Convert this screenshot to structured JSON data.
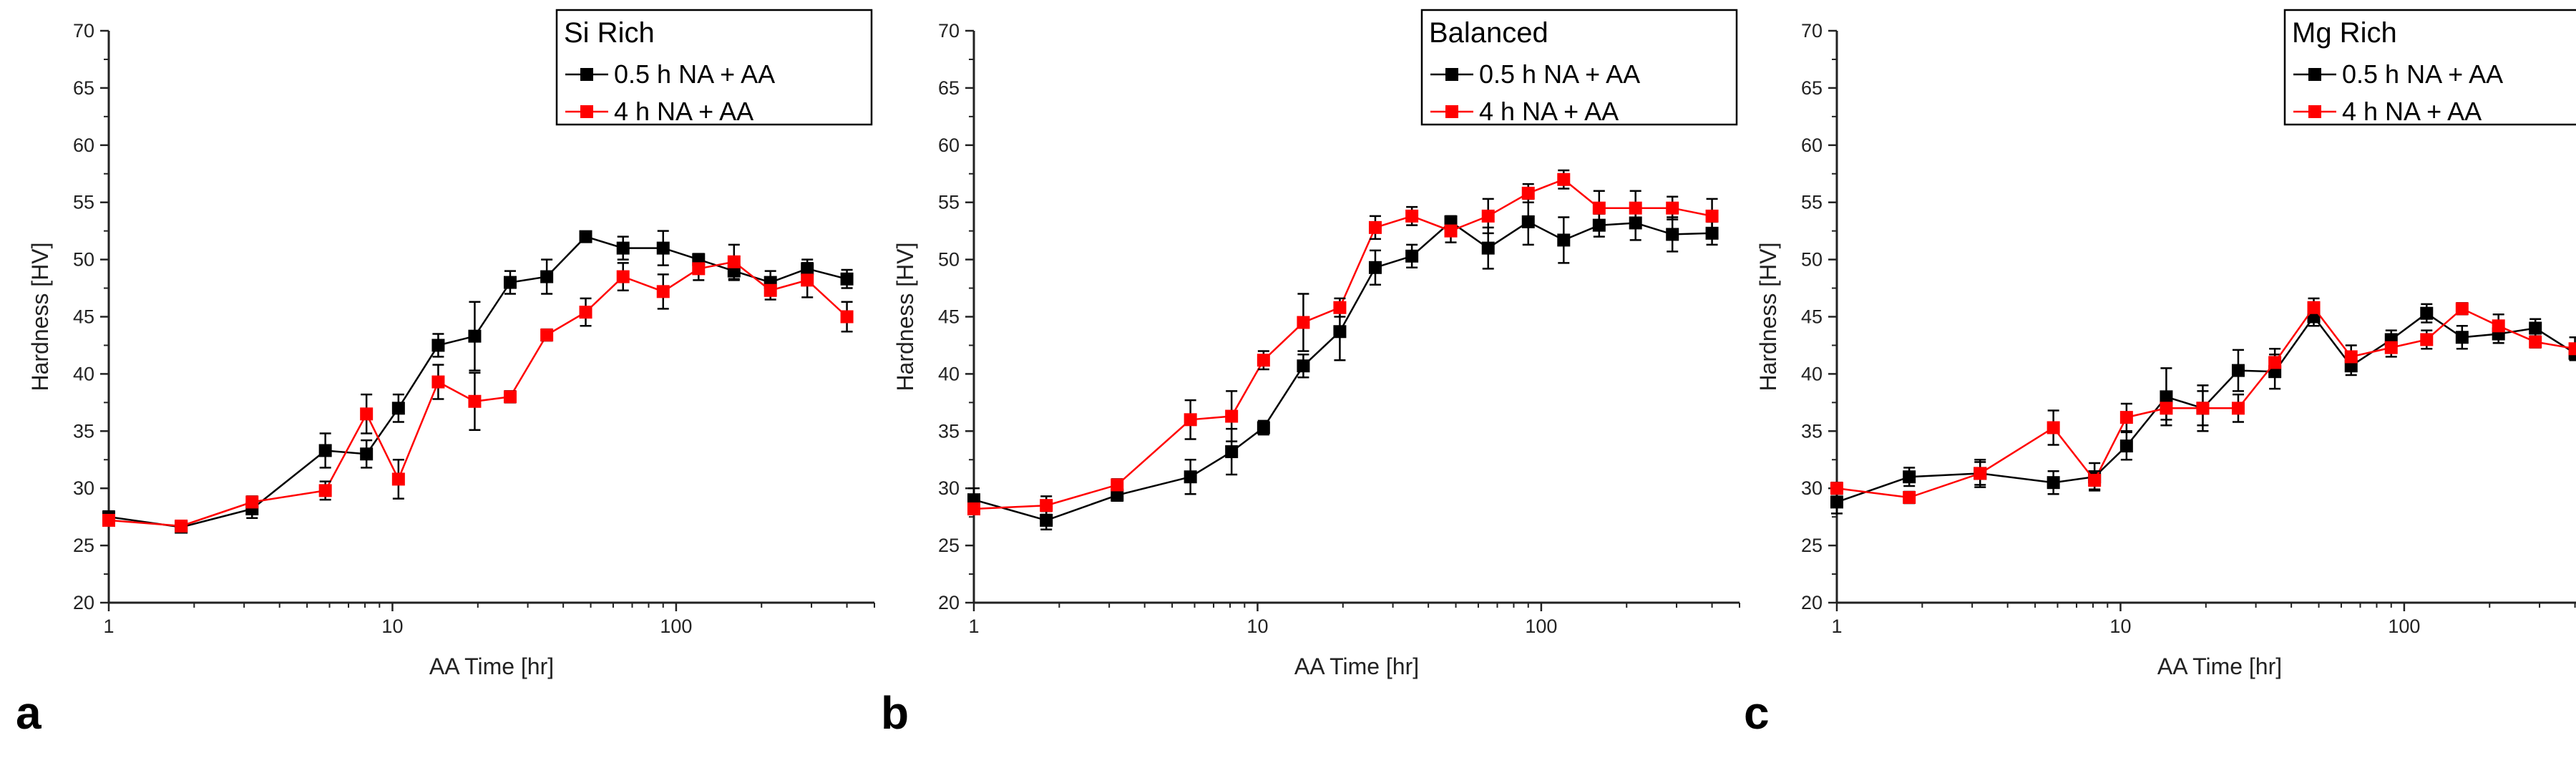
{
  "chart_data": [
    {
      "type": "line",
      "panel_letter": "a",
      "title": "Si Rich",
      "xlabel": "AA Time [hr]",
      "ylabel": "Hardness [HV]",
      "xscale": "log",
      "xlim": [
        1,
        500
      ],
      "ylim": [
        20,
        70
      ],
      "x_ticks": [
        1,
        10,
        100
      ],
      "x_tick_labels": [
        "1",
        "10",
        "100"
      ],
      "y_ticks": [
        20,
        25,
        30,
        35,
        40,
        45,
        50,
        55,
        60,
        65,
        70
      ],
      "y_tick_labels": [
        "20",
        "25",
        "30",
        "35",
        "40",
        "45",
        "50",
        "55",
        "60",
        "65",
        "70"
      ],
      "legend_position": "top-right",
      "series": [
        {
          "name": "0.5 h NA + AA",
          "color": "#000000",
          "x": [
            1,
            1.8,
            3.2,
            5.8,
            8.1,
            10.5,
            14.5,
            19.5,
            26,
            35,
            48,
            65,
            90,
            120,
            160,
            215,
            290,
            400
          ],
          "values": [
            27.5,
            26.6,
            28.2,
            33.3,
            33.0,
            37.0,
            42.5,
            43.3,
            48.0,
            48.5,
            52.0,
            51.0,
            51.0,
            50.0,
            49.0,
            48.0,
            49.2,
            48.3
          ],
          "errors": [
            0.5,
            0.3,
            0.8,
            1.5,
            1.2,
            1.2,
            1.0,
            3.0,
            1.0,
            1.5,
            0.3,
            1.0,
            1.5,
            0.5,
            0.8,
            1.0,
            0.8,
            0.8
          ]
        },
        {
          "name": "4 h NA + AA",
          "color": "#ff0000",
          "x": [
            1,
            1.8,
            3.2,
            5.8,
            8.1,
            10.5,
            14.5,
            19.5,
            26,
            35,
            48,
            65,
            90,
            120,
            160,
            215,
            290,
            400
          ],
          "values": [
            27.2,
            26.7,
            28.8,
            29.8,
            36.5,
            30.8,
            39.3,
            37.6,
            38.0,
            43.4,
            45.4,
            48.5,
            47.2,
            49.2,
            49.8,
            47.3,
            48.2,
            45.0
          ],
          "errors": [
            0.3,
            0.3,
            0.5,
            0.8,
            1.7,
            1.7,
            1.5,
            2.5,
            0.5,
            0.5,
            1.2,
            1.2,
            1.5,
            1.0,
            1.5,
            0.8,
            1.5,
            1.3
          ]
        }
      ]
    },
    {
      "type": "line",
      "panel_letter": "b",
      "title": "Balanced",
      "xlabel": "AA Time [hr]",
      "ylabel": "Hardness [HV]",
      "xscale": "log",
      "xlim": [
        1,
        500
      ],
      "ylim": [
        20,
        70
      ],
      "x_ticks": [
        1,
        10,
        100
      ],
      "x_tick_labels": [
        "1",
        "10",
        "100"
      ],
      "y_ticks": [
        20,
        25,
        30,
        35,
        40,
        45,
        50,
        55,
        60,
        65,
        70
      ],
      "y_tick_labels": [
        "20",
        "25",
        "30",
        "35",
        "40",
        "45",
        "50",
        "55",
        "60",
        "65",
        "70"
      ],
      "legend_position": "top-right",
      "series": [
        {
          "name": "0.5 h NA + AA",
          "color": "#000000",
          "x": [
            1,
            1.8,
            3.2,
            5.8,
            8.1,
            10.5,
            14.5,
            19.5,
            26,
            35,
            48,
            65,
            90,
            120,
            160,
            215,
            290,
            400
          ],
          "values": [
            29.0,
            27.2,
            29.4,
            31.0,
            33.2,
            35.3,
            40.7,
            43.7,
            49.3,
            50.3,
            53.3,
            51.0,
            53.3,
            51.7,
            53.0,
            53.2,
            52.2,
            52.3
          ],
          "errors": [
            1.0,
            0.8,
            0.5,
            1.5,
            2.0,
            0.6,
            1.0,
            2.5,
            1.5,
            1.0,
            0.5,
            1.8,
            2.0,
            2.0,
            1.0,
            1.5,
            1.5,
            1.0
          ]
        },
        {
          "name": "4 h NA + AA",
          "color": "#ff0000",
          "x": [
            1,
            1.8,
            3.2,
            5.8,
            8.1,
            10.5,
            14.5,
            19.5,
            26,
            35,
            48,
            65,
            90,
            120,
            160,
            215,
            290,
            400
          ],
          "values": [
            28.2,
            28.5,
            30.3,
            36.0,
            36.3,
            41.2,
            44.5,
            45.8,
            52.8,
            53.8,
            52.5,
            53.8,
            55.8,
            57.0,
            54.5,
            54.5,
            54.5,
            53.8
          ],
          "errors": [
            0.3,
            0.8,
            0.5,
            1.7,
            2.2,
            0.8,
            2.5,
            0.8,
            1.0,
            0.8,
            1.0,
            1.5,
            0.8,
            0.8,
            1.5,
            1.5,
            1.0,
            1.5
          ]
        }
      ]
    },
    {
      "type": "line",
      "panel_letter": "c",
      "title": "Mg Rich",
      "xlabel": "AA Time [hr]",
      "ylabel": "Hardness [HV]",
      "xscale": "log",
      "xlim": [
        1,
        500
      ],
      "ylim": [
        20,
        70
      ],
      "x_ticks": [
        1,
        10,
        100
      ],
      "x_tick_labels": [
        "1",
        "10",
        "100"
      ],
      "y_ticks": [
        20,
        25,
        30,
        35,
        40,
        45,
        50,
        55,
        60,
        65,
        70
      ],
      "y_tick_labels": [
        "20",
        "25",
        "30",
        "35",
        "40",
        "45",
        "50",
        "55",
        "60",
        "65",
        "70"
      ],
      "legend_position": "top-right",
      "series": [
        {
          "name": "0.5 h NA + AA",
          "color": "#000000",
          "x": [
            1,
            1.8,
            3.2,
            5.8,
            8.1,
            10.5,
            14.5,
            19.5,
            26,
            35,
            48,
            65,
            90,
            120,
            160,
            215,
            290,
            400
          ],
          "values": [
            28.8,
            31.0,
            31.3,
            30.5,
            31.0,
            33.7,
            38.0,
            37.0,
            40.3,
            40.2,
            45.0,
            40.7,
            43.0,
            45.3,
            43.2,
            43.5,
            44.0,
            41.8
          ],
          "errors": [
            1.0,
            0.8,
            1.2,
            1.0,
            1.2,
            1.2,
            2.5,
            2.0,
            1.8,
            1.5,
            0.8,
            0.8,
            0.8,
            0.8,
            1.0,
            0.8,
            0.8,
            0.5
          ]
        },
        {
          "name": "4 h NA + AA",
          "color": "#ff0000",
          "x": [
            1,
            1.8,
            3.2,
            5.8,
            8.1,
            10.5,
            14.5,
            19.5,
            26,
            35,
            48,
            65,
            90,
            120,
            160,
            215,
            290,
            400
          ],
          "values": [
            30.0,
            29.2,
            31.3,
            35.3,
            30.7,
            36.2,
            37.0,
            37.0,
            37.0,
            41.0,
            45.8,
            41.5,
            42.3,
            43.0,
            45.7,
            44.2,
            42.8,
            42.2
          ],
          "errors": [
            0.5,
            0.5,
            1.0,
            1.5,
            0.8,
            1.2,
            1.0,
            1.5,
            1.2,
            1.2,
            0.8,
            1.0,
            0.8,
            0.8,
            0.5,
            1.0,
            0.5,
            1.0
          ]
        }
      ]
    }
  ]
}
